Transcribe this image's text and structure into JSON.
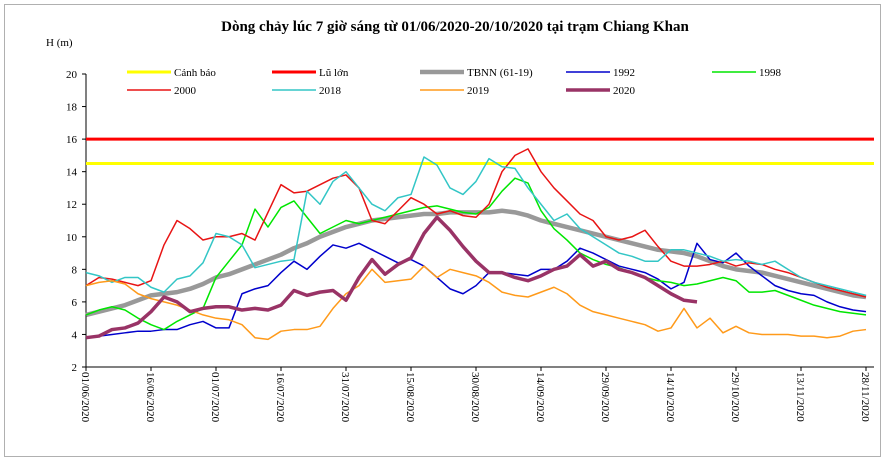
{
  "chart_data": {
    "type": "line",
    "title": "Dòng chảy lúc 7 giờ sáng từ 01/06/2020-20/10/2020 tại trạm Chiang Khan",
    "y_label": "H (m)",
    "ylim": [
      2,
      20
    ],
    "yticks": [
      2,
      4,
      6,
      8,
      10,
      12,
      14,
      16,
      18,
      20
    ],
    "x": [
      "01/06/2020",
      "04/06/2020",
      "07/06/2020",
      "10/06/2020",
      "13/06/2020",
      "16/06/2020",
      "19/06/2020",
      "22/06/2020",
      "25/06/2020",
      "28/06/2020",
      "01/07/2020",
      "04/07/2020",
      "07/07/2020",
      "10/07/2020",
      "13/07/2020",
      "16/07/2020",
      "19/07/2020",
      "22/07/2020",
      "25/07/2020",
      "28/07/2020",
      "31/07/2020",
      "03/08/2020",
      "06/08/2020",
      "09/08/2020",
      "12/08/2020",
      "15/08/2020",
      "18/08/2020",
      "21/08/2020",
      "24/08/2020",
      "27/08/2020",
      "30/08/2020",
      "02/09/2020",
      "05/09/2020",
      "08/09/2020",
      "11/09/2020",
      "14/09/2020",
      "17/09/2020",
      "20/09/2020",
      "23/09/2020",
      "26/09/2020",
      "29/09/2020",
      "02/10/2020",
      "05/10/2020",
      "08/10/2020",
      "11/10/2020",
      "14/10/2020",
      "17/10/2020",
      "20/10/2020",
      "23/10/2020",
      "26/10/2020",
      "29/10/2020",
      "01/11/2020",
      "04/11/2020",
      "07/11/2020",
      "10/11/2020",
      "13/11/2020",
      "16/11/2020",
      "19/11/2020",
      "22/11/2020",
      "25/11/2020",
      "28/11/2020"
    ],
    "xticks": [
      "01/06/2020",
      "16/06/2020",
      "01/07/2020",
      "16/07/2020",
      "31/07/2020",
      "15/08/2020",
      "30/08/2020",
      "14/09/2020",
      "29/09/2020",
      "14/10/2020",
      "29/10/2020",
      "13/11/2020",
      "28/11/2020"
    ],
    "hlines": [
      {
        "name": "Cảnh báo",
        "color": "#ffff00",
        "value": 14.5
      },
      {
        "name": "Lũ lớn",
        "color": "#ff0000",
        "value": 16
      }
    ],
    "series": [
      {
        "name": "TBNN (61-19)",
        "color": "#999999",
        "values": [
          5.2,
          5.4,
          5.6,
          5.8,
          6.1,
          6.4,
          6.5,
          6.6,
          6.8,
          7.1,
          7.5,
          7.7,
          8.0,
          8.3,
          8.6,
          8.9,
          9.3,
          9.6,
          10.0,
          10.3,
          10.6,
          10.8,
          11.0,
          11.1,
          11.2,
          11.3,
          11.4,
          11.4,
          11.5,
          11.5,
          11.5,
          11.5,
          11.6,
          11.5,
          11.3,
          11.0,
          10.8,
          10.6,
          10.4,
          10.2,
          10.0,
          9.8,
          9.6,
          9.4,
          9.2,
          9.1,
          9.0,
          8.8,
          8.5,
          8.2,
          8.0,
          7.9,
          7.8,
          7.6,
          7.4,
          7.2,
          7.0,
          6.8,
          6.6,
          6.4,
          6.3
        ]
      },
      {
        "name": "1992",
        "color": "#0000cc",
        "values": [
          3.8,
          3.9,
          4.0,
          4.1,
          4.2,
          4.2,
          4.3,
          4.3,
          4.6,
          4.8,
          4.4,
          4.4,
          6.5,
          6.8,
          7.0,
          7.8,
          8.5,
          8.0,
          8.8,
          9.5,
          9.3,
          9.6,
          9.2,
          8.8,
          8.4,
          8.6,
          8.2,
          7.5,
          6.8,
          6.5,
          7.0,
          7.8,
          7.8,
          7.7,
          7.6,
          8.0,
          8.0,
          8.5,
          9.3,
          9.0,
          8.6,
          8.2,
          8.0,
          7.8,
          7.4,
          6.8,
          7.2,
          9.6,
          8.6,
          8.4,
          9.0,
          8.2,
          7.6,
          7.0,
          6.7,
          6.5,
          6.4,
          6.0,
          5.7,
          5.5,
          5.4
        ]
      },
      {
        "name": "1998",
        "color": "#00e600",
        "values": [
          5.2,
          5.5,
          5.7,
          5.5,
          5.0,
          4.6,
          4.3,
          4.8,
          5.2,
          5.6,
          7.5,
          8.5,
          9.5,
          11.7,
          10.6,
          11.8,
          12.2,
          11.2,
          10.2,
          10.6,
          11.0,
          10.8,
          11.0,
          11.2,
          11.4,
          11.6,
          11.8,
          11.9,
          11.7,
          11.5,
          11.4,
          11.8,
          12.8,
          13.6,
          13.3,
          11.6,
          10.5,
          9.8,
          9.0,
          8.6,
          8.3,
          8.1,
          7.8,
          7.5,
          7.3,
          7.2,
          7.0,
          7.1,
          7.3,
          7.5,
          7.3,
          6.6,
          6.6,
          6.7,
          6.4,
          6.1,
          5.8,
          5.6,
          5.4,
          5.3,
          5.2
        ]
      },
      {
        "name": "2000",
        "color": "#e81414",
        "values": [
          7.0,
          7.5,
          7.4,
          7.2,
          7.0,
          7.3,
          9.5,
          11.0,
          10.5,
          9.8,
          10.0,
          10.0,
          10.2,
          9.8,
          11.5,
          13.2,
          12.7,
          12.8,
          13.2,
          13.6,
          13.8,
          13.0,
          11.0,
          10.8,
          11.6,
          12.4,
          12.0,
          11.4,
          11.6,
          11.3,
          11.2,
          12.0,
          14.0,
          15.0,
          15.4,
          14.0,
          13.0,
          12.2,
          11.4,
          11.0,
          10.0,
          9.8,
          10.0,
          10.4,
          9.4,
          8.5,
          8.2,
          8.2,
          8.3,
          8.5,
          8.2,
          8.4,
          8.3,
          8.0,
          7.8,
          7.5,
          7.2,
          6.9,
          6.7,
          6.5,
          6.3
        ]
      },
      {
        "name": "2018",
        "color": "#33c6c6",
        "values": [
          7.8,
          7.6,
          7.2,
          7.5,
          7.5,
          6.9,
          6.6,
          7.4,
          7.6,
          8.4,
          10.2,
          10.0,
          9.5,
          8.1,
          8.3,
          8.5,
          8.6,
          12.8,
          12.0,
          13.4,
          14.0,
          13.0,
          12.0,
          11.6,
          12.4,
          12.6,
          14.9,
          14.4,
          13.0,
          12.6,
          13.4,
          14.8,
          14.3,
          14.2,
          13.0,
          12.0,
          11.0,
          11.4,
          10.5,
          10.0,
          9.5,
          9.0,
          8.8,
          8.5,
          8.5,
          9.2,
          9.2,
          9.0,
          8.8,
          8.5,
          8.6,
          8.5,
          8.3,
          8.5,
          8.0,
          7.5,
          7.2,
          7.0,
          6.8,
          6.6,
          6.4
        ]
      },
      {
        "name": "2019",
        "color": "#ff9a1a",
        "values": [
          7.0,
          7.2,
          7.3,
          7.1,
          6.5,
          6.2,
          6.0,
          5.8,
          5.5,
          5.2,
          5.0,
          4.9,
          4.6,
          3.8,
          3.7,
          4.2,
          4.3,
          4.3,
          4.5,
          5.6,
          6.5,
          7.0,
          8.0,
          7.2,
          7.3,
          7.4,
          8.2,
          7.5,
          8.0,
          7.8,
          7.6,
          7.2,
          6.6,
          6.4,
          6.3,
          6.6,
          6.9,
          6.5,
          5.8,
          5.4,
          5.2,
          5.0,
          4.8,
          4.6,
          4.2,
          4.4,
          5.6,
          4.4,
          5.0,
          4.1,
          4.5,
          4.1,
          4.0,
          4.0,
          4.0,
          3.9,
          3.9,
          3.8,
          3.9,
          4.2,
          4.3
        ]
      },
      {
        "name": "2020",
        "color": "#993366",
        "values": [
          3.8,
          3.9,
          4.3,
          4.4,
          4.7,
          5.4,
          6.3,
          6.0,
          5.4,
          5.6,
          5.7,
          5.7,
          5.5,
          5.6,
          5.5,
          5.8,
          6.7,
          6.4,
          6.6,
          6.7,
          6.1,
          7.5,
          8.6,
          7.7,
          8.3,
          8.7,
          10.2,
          11.2,
          10.4,
          9.4,
          8.5,
          7.8,
          7.8,
          7.5,
          7.3,
          7.6,
          8.0,
          8.2,
          8.9,
          8.2,
          8.5,
          8.0,
          7.8,
          7.5,
          7.0,
          6.5,
          6.1,
          6.0,
          null,
          null,
          null,
          null,
          null,
          null,
          null,
          null,
          null,
          null,
          null,
          null,
          null
        ]
      }
    ]
  }
}
